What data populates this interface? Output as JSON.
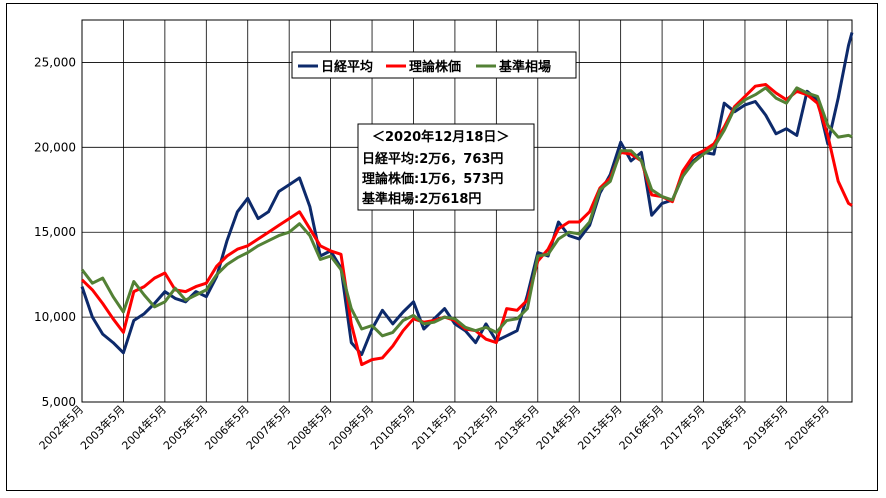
{
  "chart_data": {
    "type": "line",
    "title": "",
    "xlabel": "",
    "ylabel": "",
    "ylim": [
      5000,
      27500
    ],
    "yticks": [
      "5,000",
      "10,000",
      "15,000",
      "20,000",
      "25,000"
    ],
    "ytick_values": [
      5000,
      10000,
      15000,
      20000,
      25000
    ],
    "x_start": "2002-05",
    "x_end": "2020-12",
    "xticks": [
      "2002年5月",
      "2003年5月",
      "2004年5月",
      "2005年5月",
      "2006年5月",
      "2007年5月",
      "2008年5月",
      "2009年5月",
      "2010年5月",
      "2011年5月",
      "2012年5月",
      "2013年5月",
      "2014年5月",
      "2015年5月",
      "2016年5月",
      "2017年5月",
      "2018年5月",
      "2019年5月",
      "2020年5月"
    ],
    "grid": true,
    "legend_position": "top-center",
    "legend": [
      "日経平均",
      "理論株価",
      "基準相場"
    ],
    "annotation": {
      "title": "＜2020年12月18日＞",
      "lines": [
        "日経平均:2万6，763円",
        "理論株価:1万6，573円",
        "基準相場:2万618円"
      ]
    },
    "series": [
      {
        "name": "日経平均",
        "color": "#0d2a6b",
        "points": [
          [
            "2002-05",
            11800
          ],
          [
            "2002-08",
            10000
          ],
          [
            "2002-11",
            9000
          ],
          [
            "2003-02",
            8500
          ],
          [
            "2003-05",
            7900
          ],
          [
            "2003-08",
            9800
          ],
          [
            "2003-11",
            10200
          ],
          [
            "2004-02",
            10800
          ],
          [
            "2004-05",
            11500
          ],
          [
            "2004-08",
            11100
          ],
          [
            "2004-11",
            10900
          ],
          [
            "2005-02",
            11500
          ],
          [
            "2005-05",
            11200
          ],
          [
            "2005-08",
            12400
          ],
          [
            "2005-11",
            14500
          ],
          [
            "2006-02",
            16200
          ],
          [
            "2006-05",
            17000
          ],
          [
            "2006-08",
            15800
          ],
          [
            "2006-11",
            16200
          ],
          [
            "2007-02",
            17400
          ],
          [
            "2007-05",
            17800
          ],
          [
            "2007-08",
            18200
          ],
          [
            "2007-11",
            16500
          ],
          [
            "2008-02",
            13600
          ],
          [
            "2008-05",
            13900
          ],
          [
            "2008-08",
            12900
          ],
          [
            "2008-11",
            8500
          ],
          [
            "2009-02",
            7800
          ],
          [
            "2009-05",
            9300
          ],
          [
            "2009-08",
            10400
          ],
          [
            "2009-11",
            9600
          ],
          [
            "2010-02",
            10300
          ],
          [
            "2010-05",
            10900
          ],
          [
            "2010-08",
            9300
          ],
          [
            "2010-11",
            9900
          ],
          [
            "2011-02",
            10500
          ],
          [
            "2011-05",
            9600
          ],
          [
            "2011-08",
            9200
          ],
          [
            "2011-11",
            8500
          ],
          [
            "2012-02",
            9600
          ],
          [
            "2012-05",
            8600
          ],
          [
            "2012-08",
            8900
          ],
          [
            "2012-11",
            9200
          ],
          [
            "2013-02",
            11300
          ],
          [
            "2013-05",
            13800
          ],
          [
            "2013-08",
            13600
          ],
          [
            "2013-11",
            15600
          ],
          [
            "2014-02",
            14800
          ],
          [
            "2014-05",
            14600
          ],
          [
            "2014-08",
            15400
          ],
          [
            "2014-11",
            17300
          ],
          [
            "2015-02",
            18400
          ],
          [
            "2015-05",
            20300
          ],
          [
            "2015-08",
            19200
          ],
          [
            "2015-11",
            19700
          ],
          [
            "2016-02",
            16000
          ],
          [
            "2016-05",
            16700
          ],
          [
            "2016-08",
            16900
          ],
          [
            "2016-11",
            18300
          ],
          [
            "2017-02",
            19200
          ],
          [
            "2017-05",
            19700
          ],
          [
            "2017-08",
            19600
          ],
          [
            "2017-11",
            22600
          ],
          [
            "2018-02",
            22100
          ],
          [
            "2018-05",
            22500
          ],
          [
            "2018-08",
            22700
          ],
          [
            "2018-11",
            21900
          ],
          [
            "2019-02",
            20800
          ],
          [
            "2019-05",
            21100
          ],
          [
            "2019-08",
            20700
          ],
          [
            "2019-11",
            23300
          ],
          [
            "2020-02",
            22800
          ],
          [
            "2020-05",
            20200
          ],
          [
            "2020-08",
            22900
          ],
          [
            "2020-11",
            26000
          ],
          [
            "2020-12",
            26763
          ]
        ]
      },
      {
        "name": "理論株価",
        "color": "#ff0000",
        "points": [
          [
            "2002-05",
            12200
          ],
          [
            "2002-08",
            11600
          ],
          [
            "2002-11",
            10800
          ],
          [
            "2003-02",
            9900
          ],
          [
            "2003-05",
            9100
          ],
          [
            "2003-08",
            11500
          ],
          [
            "2003-11",
            11800
          ],
          [
            "2004-02",
            12300
          ],
          [
            "2004-05",
            12600
          ],
          [
            "2004-08",
            11600
          ],
          [
            "2004-11",
            11500
          ],
          [
            "2005-02",
            11800
          ],
          [
            "2005-05",
            12000
          ],
          [
            "2005-08",
            13000
          ],
          [
            "2005-11",
            13600
          ],
          [
            "2006-02",
            14000
          ],
          [
            "2006-05",
            14200
          ],
          [
            "2006-08",
            14600
          ],
          [
            "2006-11",
            15000
          ],
          [
            "2007-02",
            15400
          ],
          [
            "2007-05",
            15800
          ],
          [
            "2007-08",
            16200
          ],
          [
            "2007-11",
            15200
          ],
          [
            "2008-02",
            14200
          ],
          [
            "2008-05",
            13900
          ],
          [
            "2008-08",
            13700
          ],
          [
            "2008-11",
            9600
          ],
          [
            "2009-02",
            7200
          ],
          [
            "2009-05",
            7500
          ],
          [
            "2009-08",
            7600
          ],
          [
            "2009-11",
            8300
          ],
          [
            "2010-02",
            9200
          ],
          [
            "2010-05",
            9900
          ],
          [
            "2010-08",
            9700
          ],
          [
            "2010-11",
            9800
          ],
          [
            "2011-02",
            10000
          ],
          [
            "2011-05",
            9800
          ],
          [
            "2011-08",
            9300
          ],
          [
            "2011-11",
            9200
          ],
          [
            "2012-02",
            8700
          ],
          [
            "2012-05",
            8500
          ],
          [
            "2012-08",
            10500
          ],
          [
            "2012-11",
            10400
          ],
          [
            "2013-02",
            11000
          ],
          [
            "2013-05",
            13300
          ],
          [
            "2013-08",
            14000
          ],
          [
            "2013-11",
            15200
          ],
          [
            "2014-02",
            15600
          ],
          [
            "2014-05",
            15600
          ],
          [
            "2014-08",
            16200
          ],
          [
            "2014-11",
            17600
          ],
          [
            "2015-02",
            18200
          ],
          [
            "2015-05",
            19700
          ],
          [
            "2015-08",
            19600
          ],
          [
            "2015-11",
            19200
          ],
          [
            "2016-02",
            17200
          ],
          [
            "2016-05",
            17100
          ],
          [
            "2016-08",
            16800
          ],
          [
            "2016-11",
            18600
          ],
          [
            "2017-02",
            19500
          ],
          [
            "2017-05",
            19800
          ],
          [
            "2017-08",
            20200
          ],
          [
            "2017-11",
            21200
          ],
          [
            "2018-02",
            22400
          ],
          [
            "2018-05",
            23000
          ],
          [
            "2018-08",
            23600
          ],
          [
            "2018-11",
            23700
          ],
          [
            "2019-02",
            23200
          ],
          [
            "2019-05",
            22800
          ],
          [
            "2019-08",
            23300
          ],
          [
            "2019-11",
            23100
          ],
          [
            "2020-02",
            22600
          ],
          [
            "2020-05",
            20700
          ],
          [
            "2020-08",
            18000
          ],
          [
            "2020-11",
            16700
          ],
          [
            "2020-12",
            16573
          ]
        ]
      },
      {
        "name": "基準相場",
        "color": "#538135",
        "points": [
          [
            "2002-05",
            12800
          ],
          [
            "2002-08",
            12000
          ],
          [
            "2002-11",
            12300
          ],
          [
            "2003-02",
            11200
          ],
          [
            "2003-05",
            10300
          ],
          [
            "2003-08",
            12100
          ],
          [
            "2003-11",
            11300
          ],
          [
            "2004-02",
            10600
          ],
          [
            "2004-05",
            10900
          ],
          [
            "2004-08",
            11700
          ],
          [
            "2004-11",
            11000
          ],
          [
            "2005-02",
            11300
          ],
          [
            "2005-05",
            11600
          ],
          [
            "2005-08",
            12500
          ],
          [
            "2005-11",
            13100
          ],
          [
            "2006-02",
            13500
          ],
          [
            "2006-05",
            13800
          ],
          [
            "2006-08",
            14200
          ],
          [
            "2006-11",
            14500
          ],
          [
            "2007-02",
            14800
          ],
          [
            "2007-05",
            15000
          ],
          [
            "2007-08",
            15500
          ],
          [
            "2007-11",
            14800
          ],
          [
            "2008-02",
            13400
          ],
          [
            "2008-05",
            13600
          ],
          [
            "2008-08",
            12800
          ],
          [
            "2008-11",
            10500
          ],
          [
            "2009-02",
            9300
          ],
          [
            "2009-05",
            9500
          ],
          [
            "2009-08",
            8900
          ],
          [
            "2009-11",
            9100
          ],
          [
            "2010-02",
            9800
          ],
          [
            "2010-05",
            10100
          ],
          [
            "2010-08",
            9600
          ],
          [
            "2010-11",
            9700
          ],
          [
            "2011-02",
            10000
          ],
          [
            "2011-05",
            9900
          ],
          [
            "2011-08",
            9400
          ],
          [
            "2011-11",
            9200
          ],
          [
            "2012-02",
            9400
          ],
          [
            "2012-05",
            9100
          ],
          [
            "2012-08",
            9800
          ],
          [
            "2012-11",
            9900
          ],
          [
            "2013-02",
            10500
          ],
          [
            "2013-05",
            13600
          ],
          [
            "2013-08",
            13700
          ],
          [
            "2013-11",
            14600
          ],
          [
            "2014-02",
            15000
          ],
          [
            "2014-05",
            14900
          ],
          [
            "2014-08",
            15600
          ],
          [
            "2014-11",
            17500
          ],
          [
            "2015-02",
            18000
          ],
          [
            "2015-05",
            19800
          ],
          [
            "2015-08",
            19800
          ],
          [
            "2015-11",
            19200
          ],
          [
            "2016-02",
            17500
          ],
          [
            "2016-05",
            17100
          ],
          [
            "2016-08",
            16900
          ],
          [
            "2016-11",
            18300
          ],
          [
            "2017-02",
            19100
          ],
          [
            "2017-05",
            19600
          ],
          [
            "2017-08",
            20000
          ],
          [
            "2017-11",
            21000
          ],
          [
            "2018-02",
            22300
          ],
          [
            "2018-05",
            22800
          ],
          [
            "2018-08",
            23100
          ],
          [
            "2018-11",
            23500
          ],
          [
            "2019-02",
            22900
          ],
          [
            "2019-05",
            22600
          ],
          [
            "2019-08",
            23500
          ],
          [
            "2019-11",
            23200
          ],
          [
            "2020-02",
            23000
          ],
          [
            "2020-05",
            21300
          ],
          [
            "2020-08",
            20600
          ],
          [
            "2020-11",
            20700
          ],
          [
            "2020-12",
            20618
          ]
        ]
      }
    ]
  }
}
